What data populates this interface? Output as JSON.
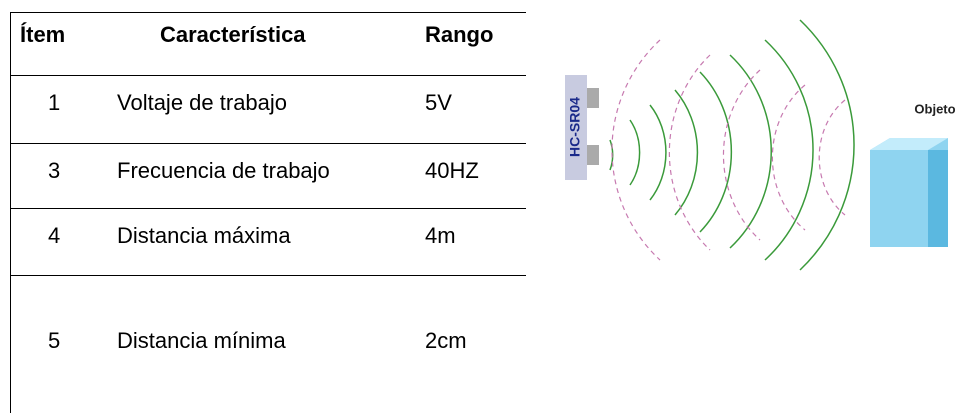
{
  "table": {
    "header": [
      "Ítem",
      "Característica",
      "Rango"
    ],
    "rows": [
      [
        "1",
        "Voltaje de trabajo",
        "5V"
      ],
      [
        "3",
        "Frecuencia de trabajo",
        "40HZ"
      ],
      [
        "4",
        "Distancia máxima",
        "4m"
      ],
      [
        "5",
        "Distancia mínima",
        "2cm"
      ]
    ]
  },
  "diagram": {
    "sensor_label": "HC-SR04",
    "object_label": "Objeto"
  }
}
